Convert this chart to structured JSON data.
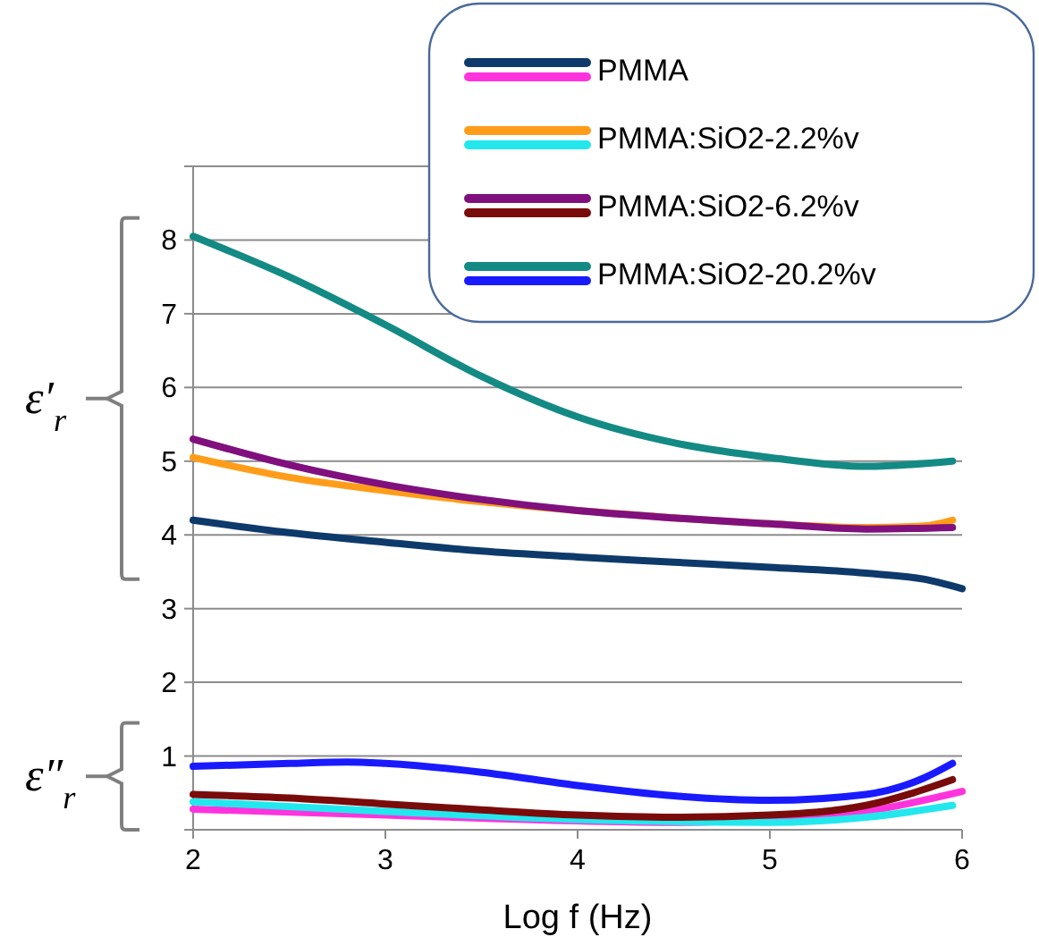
{
  "chart_data": {
    "type": "line",
    "xlabel": "Log f (Hz)",
    "xlim": [
      2,
      6
    ],
    "xticks": [
      2,
      3,
      4,
      5,
      6
    ],
    "ylim": [
      0,
      9
    ],
    "yticks": [
      {
        "value": 0,
        "label": null
      },
      1,
      2,
      3,
      4,
      5,
      6,
      7,
      8,
      {
        "value": 9,
        "label": null
      }
    ],
    "grid": "y",
    "legend": "top right",
    "marker": "none",
    "line_style": "solid",
    "annotations": [
      "ε′$_{r}$",
      "ε″$_{r}$"
    ],
    "series": [
      {
        "name": "PMMA",
        "color": "#0e3a6b",
        "x": [
          2,
          2.5,
          3,
          3.5,
          4,
          4.5,
          5,
          5.5,
          5.8,
          6
        ],
        "values": [
          4.2,
          4.03,
          3.9,
          3.78,
          3.7,
          3.63,
          3.56,
          3.48,
          3.4,
          3.27
        ]
      },
      {
        "color": "#ff33dd",
        "x": [
          2,
          3,
          4,
          4.5,
          5,
          5.5,
          6
        ],
        "values": [
          0.28,
          0.2,
          0.12,
          0.1,
          0.14,
          0.25,
          0.52
        ]
      },
      {
        "name": "PMMA:SiO2-2.2%v",
        "color": "#ff9d1a",
        "x": [
          2,
          2.5,
          3,
          3.5,
          4,
          4.5,
          5,
          5.5,
          5.8,
          5.95
        ],
        "values": [
          5.05,
          4.78,
          4.6,
          4.45,
          4.33,
          4.23,
          4.15,
          4.1,
          4.12,
          4.2
        ]
      },
      {
        "color": "#22e8ee",
        "x": [
          2,
          3,
          4,
          5,
          5.5,
          5.95
        ],
        "values": [
          0.38,
          0.25,
          0.14,
          0.1,
          0.17,
          0.33
        ]
      },
      {
        "name": "PMMA:SiO2-6.2%v",
        "color": "#80107e",
        "x": [
          2,
          2.5,
          3,
          3.5,
          4,
          4.5,
          5,
          5.5,
          5.95
        ],
        "values": [
          5.3,
          4.95,
          4.68,
          4.48,
          4.33,
          4.23,
          4.15,
          4.08,
          4.1
        ]
      },
      {
        "color": "#7a0b0b",
        "x": [
          2,
          2.5,
          3,
          3.5,
          4,
          4.5,
          5,
          5.5,
          5.95
        ],
        "values": [
          0.48,
          0.43,
          0.35,
          0.27,
          0.2,
          0.17,
          0.2,
          0.33,
          0.68
        ]
      },
      {
        "name": "PMMA:SiO2-20.2%v",
        "color": "#148a84",
        "x": [
          2,
          2.5,
          3,
          3.5,
          4,
          4.5,
          5,
          5.5,
          5.95
        ],
        "values": [
          8.05,
          7.5,
          6.85,
          6.15,
          5.6,
          5.25,
          5.05,
          4.93,
          5.0
        ]
      },
      {
        "color": "#1a1aff",
        "x": [
          2,
          2.5,
          2.8,
          3,
          3.5,
          4,
          4.5,
          5,
          5.5,
          5.8,
          5.95
        ],
        "values": [
          0.86,
          0.9,
          0.92,
          0.9,
          0.78,
          0.6,
          0.46,
          0.4,
          0.48,
          0.7,
          0.9
        ]
      }
    ]
  }
}
